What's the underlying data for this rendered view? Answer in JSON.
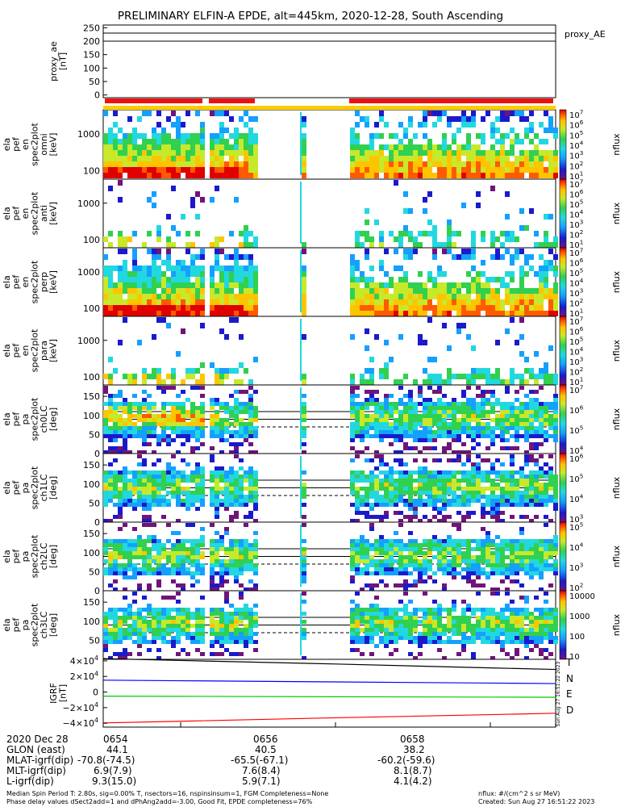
{
  "title": "PRELIMINARY ELFIN-A EPDE, alt=445km, 2020-12-28, South Ascending",
  "chart_data": [
    {
      "type": "line",
      "name": "proxy_ae",
      "ylabel_lines": [
        "proxy_ae",
        "[nT]"
      ],
      "yticks": [
        "250",
        "200",
        "150",
        "100",
        "50",
        "0"
      ],
      "ylim": [
        -10,
        260
      ],
      "legend": "proxy_AE",
      "ref_lines": [
        230,
        200
      ]
    },
    {
      "type": "heatmap",
      "name": "omni-energy",
      "ylabel_lines": [
        "ela",
        "pef",
        "en",
        "spec2plot",
        "omni",
        "[keV]"
      ],
      "yticks": [
        "1000",
        "100"
      ],
      "scale": "log",
      "cbar_ticks": [
        "10^7",
        "10^6",
        "10^5",
        "10^4",
        "10^3",
        "10^2",
        "10^1"
      ],
      "cbar_label": "nflux"
    },
    {
      "type": "heatmap",
      "name": "anti-energy",
      "ylabel_lines": [
        "ela",
        "pef",
        "en",
        "spec2plot",
        "anti",
        "[keV]"
      ],
      "yticks": [
        "1000",
        "100"
      ],
      "scale": "log",
      "cbar_ticks": [
        "10^7",
        "10^6",
        "10^5",
        "10^4",
        "10^3",
        "10^2",
        "10^1"
      ],
      "cbar_label": "nflux"
    },
    {
      "type": "heatmap",
      "name": "perp-energy",
      "ylabel_lines": [
        "ela",
        "pef",
        "en",
        "spec2plot",
        "perp",
        "[keV]"
      ],
      "yticks": [
        "1000",
        "100"
      ],
      "scale": "log",
      "cbar_ticks": [
        "10^7",
        "10^6",
        "10^5",
        "10^4",
        "10^3",
        "10^2",
        "10^1"
      ],
      "cbar_label": "nflux"
    },
    {
      "type": "heatmap",
      "name": "para-energy",
      "ylabel_lines": [
        "ela",
        "pef",
        "en",
        "spec2plot",
        "para",
        "[keV]"
      ],
      "yticks": [
        "1000",
        "100"
      ],
      "scale": "log",
      "cbar_ticks": [
        "10^7",
        "10^6",
        "10^5",
        "10^4",
        "10^3",
        "10^2",
        "10^1"
      ],
      "cbar_label": "nflux"
    },
    {
      "type": "heatmap",
      "name": "ch0LC",
      "ylabel_lines": [
        "ela",
        "pef",
        "pa",
        "spec2plot",
        "ch0LC",
        "[deg]"
      ],
      "yticks": [
        "150",
        "100",
        "50",
        "0"
      ],
      "ylim": [
        0,
        180
      ],
      "cbar_ticks": [
        "10^7",
        "10^6",
        "10^5",
        "10^4"
      ],
      "cbar_label": "nflux",
      "ref_lines": {
        "solid": [
          110,
          90
        ],
        "dashed": [
          70
        ]
      }
    },
    {
      "type": "heatmap",
      "name": "ch1LC",
      "ylabel_lines": [
        "ela",
        "pef",
        "pa",
        "spec2plot",
        "ch1LC",
        "[deg]"
      ],
      "yticks": [
        "150",
        "100",
        "50",
        "0"
      ],
      "ylim": [
        0,
        180
      ],
      "cbar_ticks": [
        "10^6",
        "10^5",
        "10^4",
        "10^3"
      ],
      "cbar_label": "nflux",
      "ref_lines": {
        "solid": [
          110,
          90
        ],
        "dashed": [
          70
        ]
      }
    },
    {
      "type": "heatmap",
      "name": "ch2LC",
      "ylabel_lines": [
        "ela",
        "pef",
        "pa",
        "spec2plot",
        "ch2LC",
        "[deg]"
      ],
      "yticks": [
        "150",
        "100",
        "50",
        "0"
      ],
      "ylim": [
        0,
        180
      ],
      "cbar_ticks": [
        "10^5",
        "10^4",
        "10^3",
        "10^2"
      ],
      "cbar_label": "nflux",
      "ref_lines": {
        "solid": [
          110,
          90
        ],
        "dashed": [
          70
        ]
      }
    },
    {
      "type": "heatmap",
      "name": "ch3LC",
      "ylabel_lines": [
        "ela",
        "pef",
        "pa",
        "spec2plot",
        "ch3LC",
        "[deg]"
      ],
      "yticks": [
        "150",
        "100",
        "50"
      ],
      "ylim": [
        0,
        180
      ],
      "cbar_ticks": [
        "10000",
        "1000",
        "100",
        "10"
      ],
      "cbar_label": "nflux",
      "ref_lines": {
        "solid": [
          110,
          90
        ],
        "dashed": [
          70
        ]
      }
    },
    {
      "type": "line",
      "name": "IGRF",
      "ylabel_lines": [
        "IGRF",
        "[nT]"
      ],
      "yticks": [
        "4×10^4",
        "2×10^4",
        "0",
        "−2×10^4",
        "−4×10^4"
      ],
      "ylim": [
        -45000,
        42000
      ],
      "series": [
        {
          "name": "T",
          "color": "#000000",
          "x": [
            "0654",
            "0656",
            "0658"
          ],
          "values": [
            40500,
            36000,
            31000
          ]
        },
        {
          "name": "N",
          "color": "#0000ff",
          "x": [
            "0654",
            "0656",
            "0658"
          ],
          "values": [
            14500,
            13000,
            11500
          ]
        },
        {
          "name": "E",
          "color": "#00cc00",
          "x": [
            "0654",
            "0656",
            "0658"
          ],
          "values": [
            -5500,
            -6000,
            -6500
          ]
        },
        {
          "name": "D",
          "color": "#ff0000",
          "x": [
            "0654",
            "0656",
            "0658"
          ],
          "values": [
            -37500,
            -33000,
            -29000
          ]
        }
      ],
      "side_note": "Sun Aug 27 16:51:22 2023"
    }
  ],
  "x_axis": {
    "ticks": [
      "0654",
      "0656",
      "0658"
    ]
  },
  "info_rows": [
    {
      "label": "2020 Dec 28",
      "values": [
        "0654",
        "0656",
        "0658"
      ]
    },
    {
      "label": "GLON (east)",
      "values": [
        "44.1",
        "40.5",
        "38.2"
      ]
    },
    {
      "label": "MLAT-igrf(dip)",
      "values": [
        "-70.8(-74.5)",
        "-65.5(-67.1)",
        "-60.2(-59.6)"
      ]
    },
    {
      "label": "MLT-igrf(dip)",
      "values": [
        "6.9(7.9)",
        "7.6(8.4)",
        "8.1(8.7)"
      ]
    },
    {
      "label": "L-igrf(dip)",
      "values": [
        "9.3(15.0)",
        "5.9(7.1)",
        "4.1(4.2)"
      ]
    }
  ],
  "footer": {
    "left1": "Median Spin Period T: 2.80s, sig=0.00% T, nsectors=16, nspinsinsum=1, FGM Completeness=None",
    "left2": "Phase delay values dSect2add=1 and dPhAng2add=-3.00, Good Fit, EPDE completeness=76%",
    "right1": "nflux: #/(cm^2 s sr MeV)",
    "right2": "Created: Sun Aug 27 16:51:22 2023"
  },
  "colors": {
    "bar_red": "#ee1111",
    "bar_yellow": "#ffcc00",
    "ref_line": "#000000"
  }
}
